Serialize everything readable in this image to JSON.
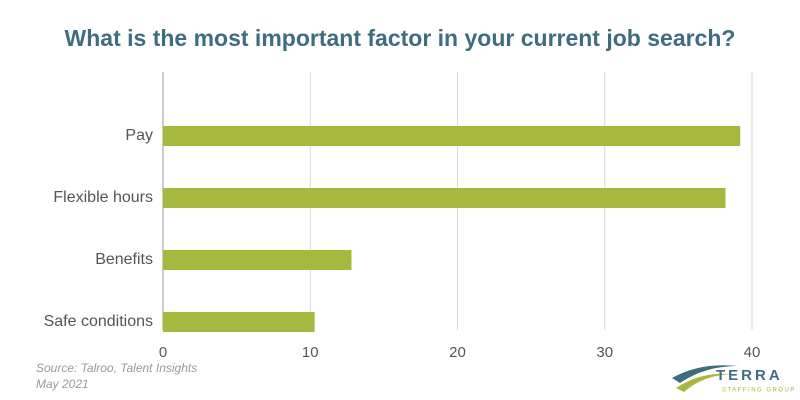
{
  "chart_data": {
    "type": "bar",
    "orientation": "horizontal",
    "title": "What is the most important factor in your current job search?",
    "categories": [
      "Pay",
      "Flexible hours",
      "Benefits",
      "Safe conditions"
    ],
    "values": [
      39.2,
      38.2,
      12.8,
      10.3
    ],
    "color": "#a6b83d",
    "xlim": [
      0,
      40
    ],
    "xticks": [
      0,
      10,
      20,
      30,
      40
    ],
    "grid": true,
    "source": [
      "Source: Talroo, Talent Insights",
      "May 2021"
    ],
    "logo": {
      "name": "TERRA",
      "tagline": "STAFFING GROUP"
    }
  }
}
